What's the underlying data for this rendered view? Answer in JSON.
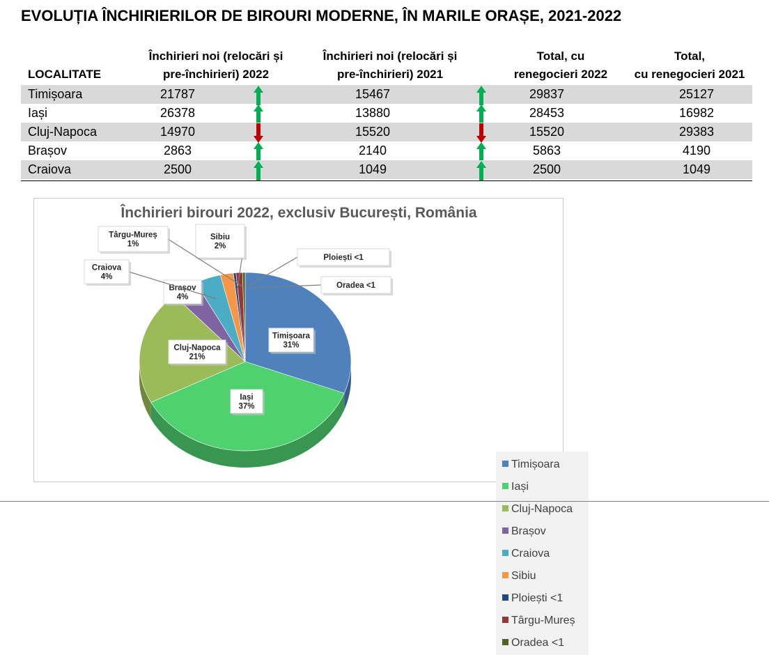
{
  "title": "EVOLUȚIA ÎNCHIRIERILOR DE BIROURI MODERNE, ÎN MARILE ORAȘE, 2021-2022",
  "table": {
    "headers": {
      "locality": "LOCALITATE",
      "new2022": [
        "Închirieri noi (relocări și",
        "pre-închirieri) 2022"
      ],
      "new2021": [
        "Închirieri noi (relocări și",
        "pre-închirieri) 2021"
      ],
      "total2022": [
        "Total, cu",
        "renegocieri 2022"
      ],
      "total2021": [
        "Total,",
        "cu renegocieri 2021"
      ]
    },
    "rows": [
      {
        "city": "Timișoara",
        "new2022": "21787",
        "new2021": "15467",
        "total2022": "29837",
        "total2021": "25127",
        "trend_new": "up",
        "trend_total": "up"
      },
      {
        "city": "Iași",
        "new2022": "26378",
        "new2021": "13880",
        "total2022": "28453",
        "total2021": "16982",
        "trend_new": "up",
        "trend_total": "up"
      },
      {
        "city": "Cluj-Napoca",
        "new2022": "14970",
        "new2021": "15520",
        "total2022": "15520",
        "total2021": "29383",
        "trend_new": "down",
        "trend_total": "down"
      },
      {
        "city": "Brașov",
        "new2022": "2863",
        "new2021": "2140",
        "total2022": "5863",
        "total2021": "4190",
        "trend_new": "up",
        "trend_total": "up"
      },
      {
        "city": "Craiova",
        "new2022": "2500",
        "new2021": "1049",
        "total2022": "2500",
        "total2021": "1049",
        "trend_new": "up",
        "trend_total": "up"
      }
    ],
    "colors": {
      "shade": "#d9d9d9",
      "up": "#00b050",
      "down": "#c00000"
    }
  },
  "chart_data": {
    "type": "pie",
    "title": "Închirieri birouri 2022, exclusiv București, România",
    "legend_position": "right",
    "slices": [
      {
        "label": "Timișoara",
        "value": 31,
        "data_label": [
          "Timișoara",
          "31%"
        ],
        "color": "#4f81bd"
      },
      {
        "label": "Iași",
        "value": 37,
        "data_label": [
          "Iași",
          "37%"
        ],
        "color": "#4fd170"
      },
      {
        "label": "Cluj-Napoca",
        "value": 21,
        "data_label": [
          "Cluj-Napoca",
          "21%"
        ],
        "color": "#9bbb59"
      },
      {
        "label": "Brașov",
        "value": 4,
        "data_label": [
          "Brașov",
          "4%"
        ],
        "color": "#8064a2"
      },
      {
        "label": "Craiova",
        "value": 4,
        "data_label": [
          "Craiova",
          "4%"
        ],
        "color": "#4bacc6"
      },
      {
        "label": "Sibiu",
        "value": 2,
        "data_label": [
          "Sibiu",
          "2%"
        ],
        "color": "#f79646"
      },
      {
        "label": "Ploiești <1",
        "value": 0.4,
        "data_label": [
          "Ploiești <1"
        ],
        "color": "#1f497d"
      },
      {
        "label": "Târgu-Mureș",
        "value": 1,
        "data_label": [
          "Târgu-Mureș",
          "1%"
        ],
        "color": "#953735"
      },
      {
        "label": "Oradea  <1",
        "value": 0.4,
        "data_label": [
          "Oradea  <1"
        ],
        "color": "#4f6228"
      }
    ]
  }
}
